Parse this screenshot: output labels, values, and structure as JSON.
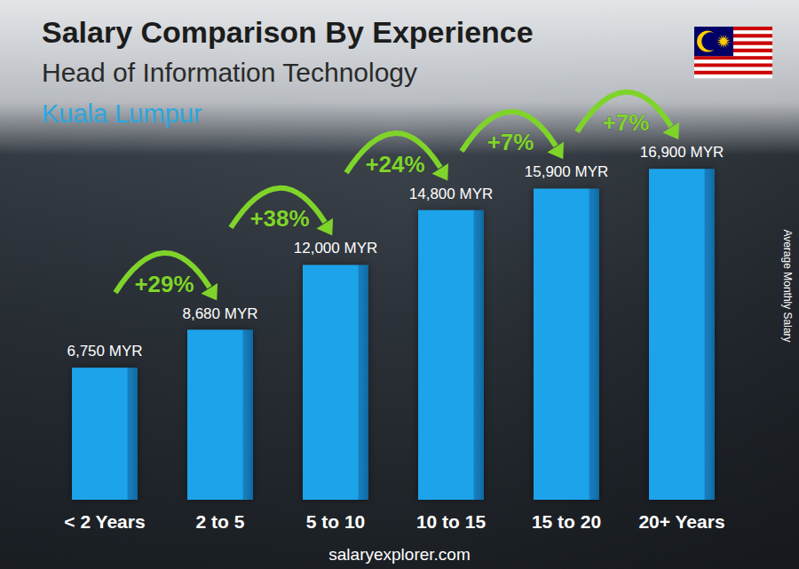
{
  "chart_data": {
    "type": "bar",
    "title": "Salary Comparison By Experience",
    "subtitle": "Head of Information Technology",
    "location": "Kuala Lumpur",
    "y_label": "Average Monthly Salary",
    "source": "salaryexplorer.com",
    "categories": [
      "< 2 Years",
      "2 to 5",
      "5 to 10",
      "10 to 15",
      "15 to 20",
      "20+ Years"
    ],
    "values": [
      6750,
      8680,
      12000,
      14800,
      15900,
      16900
    ],
    "value_labels": [
      "6,750 MYR",
      "8,680 MYR",
      "12,000 MYR",
      "14,800 MYR",
      "15,900 MYR",
      "16,900 MYR"
    ],
    "annotations": [
      "+29%",
      "+38%",
      "+24%",
      "+7%",
      "+7%"
    ],
    "color": "#1fa3ea",
    "ylim": [
      0,
      20000
    ],
    "yticks": [
      0,
      5000,
      10000,
      15000,
      20000
    ],
    "grid": false,
    "data_labels": true,
    "tick_labels": "x"
  }
}
